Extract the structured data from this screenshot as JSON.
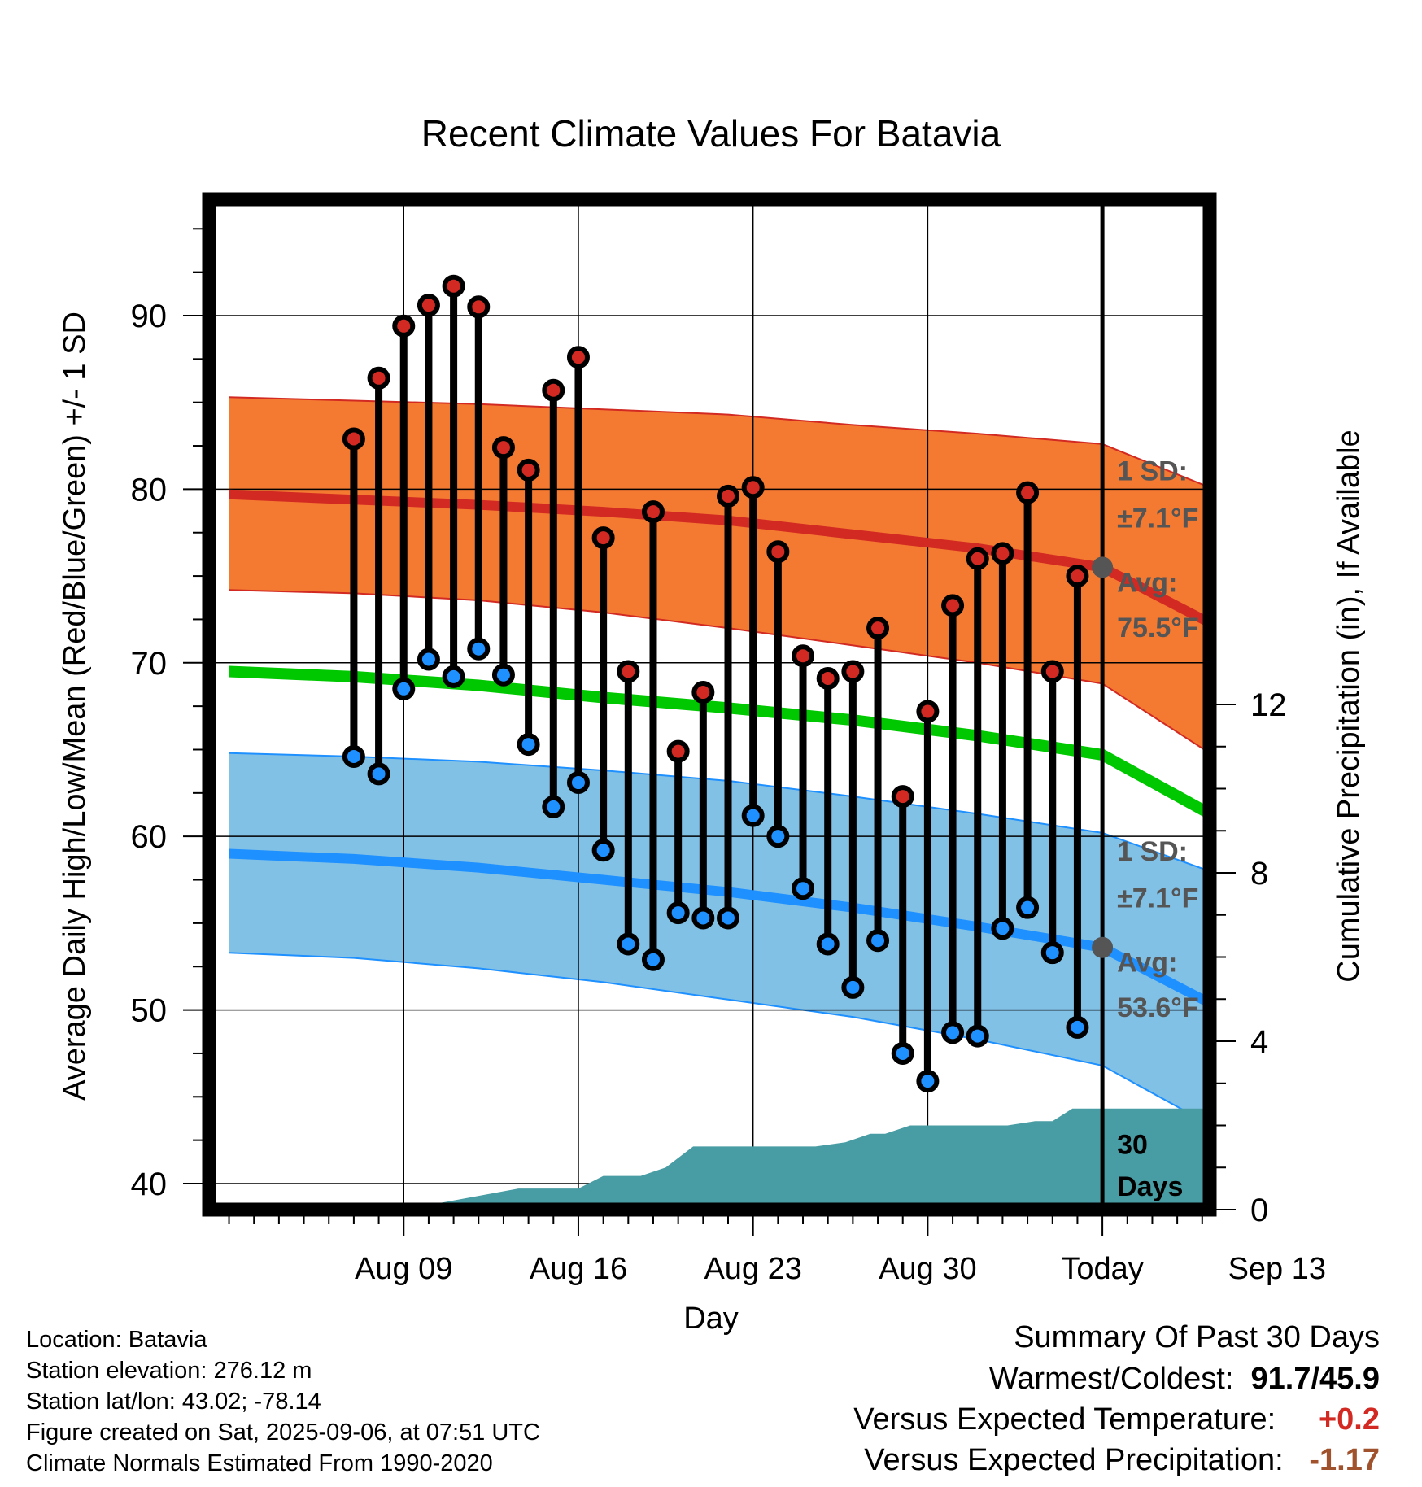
{
  "chart_data": {
    "type": "line",
    "title": "Recent Climate Values For Batavia",
    "xlabel": "Day",
    "ylabel_left": "Average Daily High/Low/Mean (Red/Blue/Green) +/- 1 SD",
    "ylabel_right": "Cumulative Precipitation (in), If Available",
    "ylim_left": [
      38.5,
      96.7
    ],
    "ylim_right": [
      0,
      24
    ],
    "xlim_days": [
      -5.8,
      34.3
    ],
    "x_ticks": [
      {
        "day": 2,
        "label": "Aug 09"
      },
      {
        "day": 9,
        "label": "Aug 16"
      },
      {
        "day": 16,
        "label": "Aug 23"
      },
      {
        "day": 23,
        "label": "Aug 30"
      },
      {
        "day": 30,
        "label": "Today"
      },
      {
        "day": 37,
        "label": "Sep 13"
      }
    ],
    "y_ticks_left": [
      40,
      50,
      60,
      70,
      80,
      90
    ],
    "y_ticks_right": [
      0,
      4,
      8,
      12
    ],
    "today_day": 30,
    "x_day_reference": "Aug 07",
    "days": [
      0,
      1,
      2,
      3,
      4,
      5,
      6,
      7,
      8,
      9,
      10,
      11,
      12,
      13,
      14,
      15,
      16,
      17,
      18,
      19,
      20,
      21,
      22,
      23,
      24,
      25,
      26,
      27,
      28,
      29
    ],
    "highs": [
      82.9,
      86.4,
      89.4,
      90.6,
      91.7,
      90.5,
      82.4,
      81.1,
      85.7,
      87.6,
      77.2,
      69.5,
      78.7,
      64.9,
      68.3,
      79.6,
      80.1,
      76.4,
      70.4,
      69.1,
      69.5,
      72.0,
      62.3,
      67.2,
      73.3,
      76.0,
      76.3,
      79.8,
      69.5,
      75.0
    ],
    "lows": [
      64.6,
      63.6,
      68.5,
      70.2,
      69.2,
      70.8,
      69.3,
      65.3,
      61.7,
      63.1,
      59.2,
      53.8,
      52.9,
      55.6,
      55.3,
      55.3,
      61.2,
      60.0,
      57.0,
      53.8,
      51.3,
      54.0,
      47.5,
      45.9,
      48.7,
      48.5,
      54.7,
      55.9,
      53.3,
      49.0
    ],
    "normals": {
      "days": [
        -5,
        0,
        5,
        10,
        15,
        20,
        25,
        30,
        34.3
      ],
      "high_avg": [
        79.7,
        79.4,
        79.1,
        78.7,
        78.2,
        77.4,
        76.6,
        75.5,
        72.3
      ],
      "high_upper": [
        85.3,
        85.1,
        84.9,
        84.6,
        84.3,
        83.7,
        83.2,
        82.6,
        80.1
      ],
      "high_lower": [
        74.2,
        74.0,
        73.6,
        72.9,
        72.0,
        71.0,
        70.0,
        68.8,
        64.8
      ],
      "mean": [
        69.5,
        69.2,
        68.7,
        68.0,
        67.4,
        66.7,
        65.8,
        64.7,
        61.3
      ],
      "low_avg": [
        59.0,
        58.7,
        58.2,
        57.5,
        56.8,
        55.9,
        54.8,
        53.6,
        50.4
      ],
      "low_upper": [
        64.8,
        64.6,
        64.3,
        63.8,
        63.2,
        62.3,
        61.3,
        60.2,
        58.0
      ],
      "low_lower": [
        53.3,
        53.0,
        52.4,
        51.6,
        50.6,
        49.6,
        48.3,
        46.8,
        43.4
      ]
    },
    "precip": {
      "days": [
        -5.8,
        1.7,
        2.0,
        6.6,
        6.9,
        9.0,
        10.0,
        11.5,
        12.5,
        13.6,
        14.0,
        16.5,
        17.3,
        18.5,
        19.7,
        20.7,
        21.3,
        22.3,
        23.0,
        25.5,
        26.2,
        27.3,
        28.0,
        28.8,
        34.3
      ],
      "values": [
        0,
        0,
        0,
        0.5,
        0.5,
        0.5,
        0.8,
        0.8,
        1.0,
        1.5,
        1.5,
        1.5,
        1.5,
        1.5,
        1.6,
        1.8,
        1.8,
        2.0,
        2.0,
        2.0,
        2.0,
        2.1,
        2.1,
        2.4,
        2.4
      ]
    },
    "annotations": {
      "high_sd_label": "1 SD:",
      "high_sd_value": "±7.1°F",
      "high_avg_label": "Avg:",
      "high_avg_value": "75.5°F",
      "low_sd_label": "1 SD:",
      "low_sd_value": "±7.1°F",
      "low_avg_label": "Avg:",
      "low_avg_value": "53.6°F",
      "days_line1": "30",
      "days_line2": "Days"
    },
    "colors": {
      "high_band": "#f47a32",
      "high_line": "#d22a22",
      "low_band": "#82c1e6",
      "low_line": "#1e90ff",
      "mean_line": "#00c800",
      "precip": "#489ca3",
      "high_dot": "#d22a22",
      "low_dot": "#1e90ff",
      "annotation": "#555555"
    }
  },
  "info": {
    "location": "Location: Batavia",
    "elevation": "Station elevation: 276.12 m",
    "latlon": "Station lat/lon: 43.02; -78.14",
    "created": "Figure created on Sat, 2025-09-06, at 07:51 UTC",
    "normals": "Climate Normals Estimated From 1990-2020"
  },
  "summary": {
    "title": "Summary Of Past 30 Days",
    "warm_label": "Warmest/Coldest:",
    "warm_value": "91.7/45.9",
    "temp_label": "Versus Expected Temperature:",
    "temp_value": "+0.2",
    "temp_color": "#d22a22",
    "precip_label": "Versus Expected Precipitation:",
    "precip_value": "-1.17",
    "precip_color": "#a0522d"
  }
}
